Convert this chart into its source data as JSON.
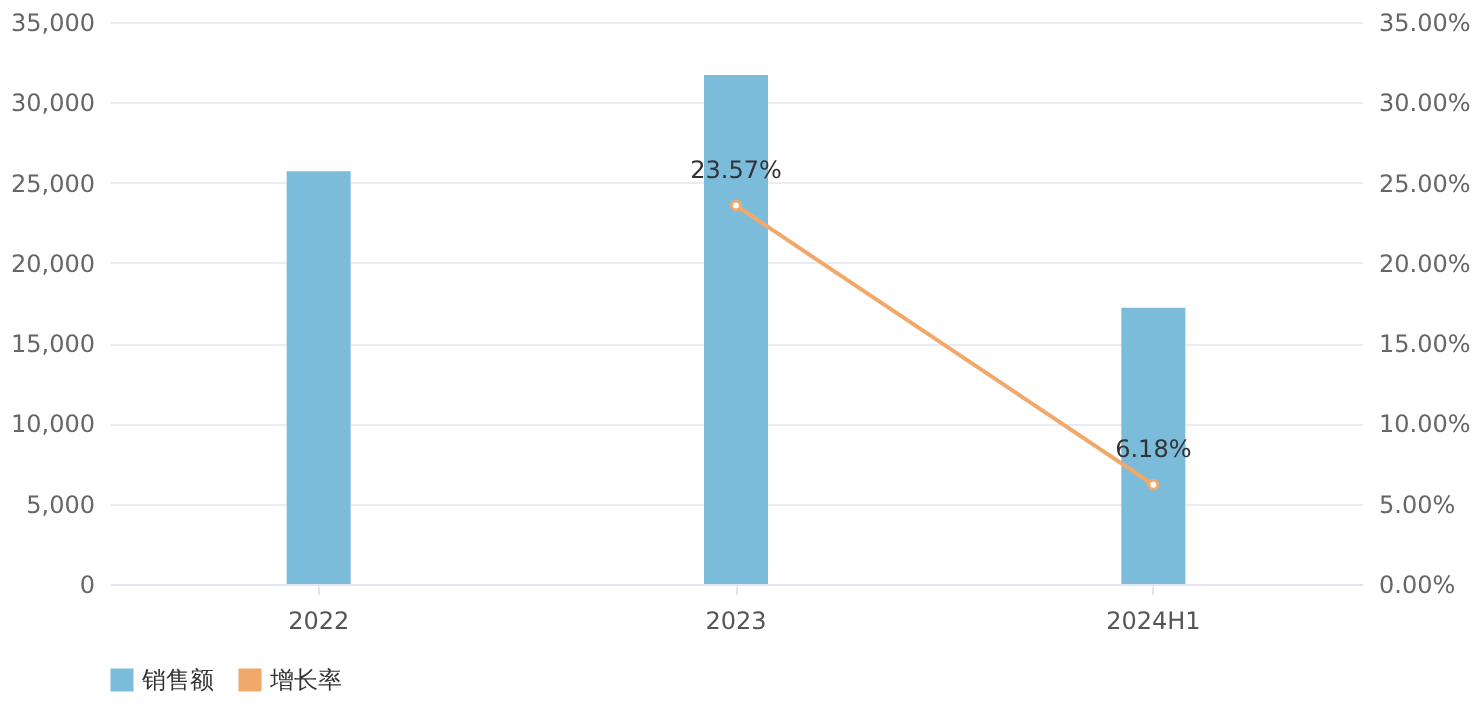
{
  "chart_data": {
    "type": "bar",
    "categories": [
      "2022",
      "2023",
      "2024H1"
    ],
    "series": [
      {
        "name": "销售额",
        "color": "#7bbcdb",
        "values": [
          25700,
          31700,
          17200
        ]
      },
      {
        "name": "增长率",
        "type": "line",
        "axis": "y2",
        "color": "#f0a96a",
        "values": [
          null,
          23.57,
          6.18
        ],
        "value_labels": [
          null,
          "23.57%",
          "6.18%"
        ],
        "marker": "circle"
      }
    ],
    "ylim": [
      0,
      35000
    ],
    "yticks": [
      {
        "value": 0,
        "label": "0"
      },
      {
        "value": 5000,
        "label": "5,000"
      },
      {
        "value": 10000,
        "label": "10,000"
      },
      {
        "value": 15000,
        "label": "15,000"
      },
      {
        "value": 20000,
        "label": "20,000"
      },
      {
        "value": 25000,
        "label": "25,000"
      },
      {
        "value": 30000,
        "label": "30,000"
      },
      {
        "value": 35000,
        "label": "35,000"
      }
    ],
    "y2lim": [
      0,
      35
    ],
    "y2ticks": [
      {
        "value": 0,
        "label": "0.00%"
      },
      {
        "value": 5,
        "label": "5.00%"
      },
      {
        "value": 10,
        "label": "10.00%"
      },
      {
        "value": 15,
        "label": "15.00%"
      },
      {
        "value": 20,
        "label": "20.00%"
      },
      {
        "value": 25,
        "label": "25.00%"
      },
      {
        "value": 30,
        "label": "30.00%"
      },
      {
        "value": 35,
        "label": "35.00%"
      }
    ],
    "grid": "y",
    "legend": "bottom"
  }
}
